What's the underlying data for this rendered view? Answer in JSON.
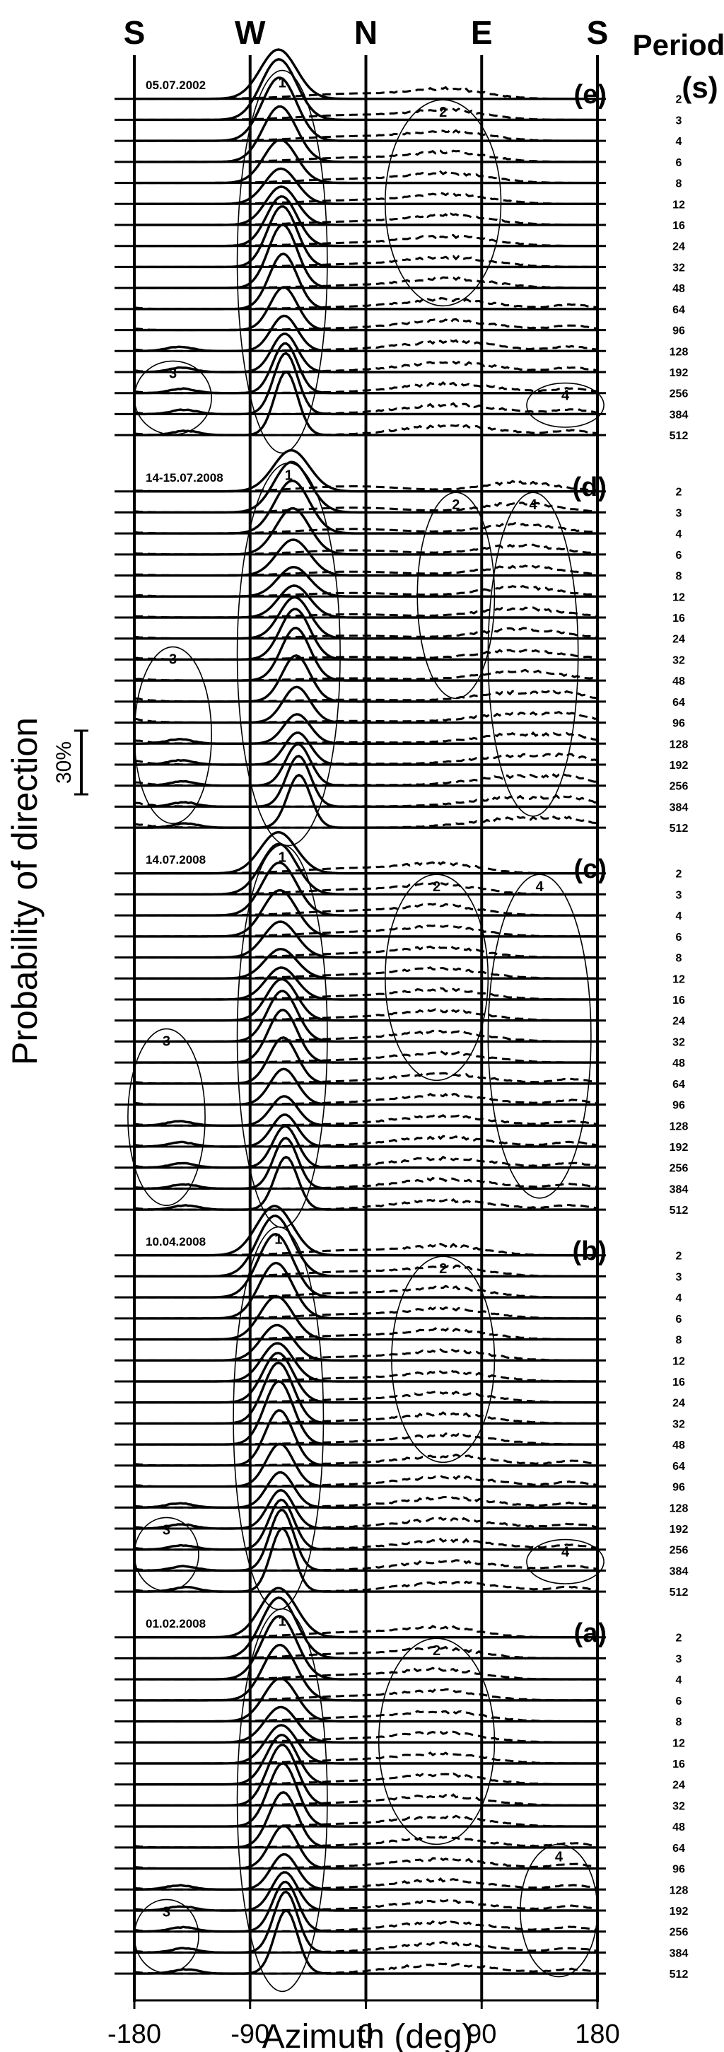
{
  "chart_data": {
    "type": "line",
    "description_axis": "Stacked direction-probability distributions per wave period for five dates",
    "xlabel": "Azimuth (deg)",
    "ylabel": "Probability of direction",
    "xlim": [
      -180,
      180
    ],
    "x_ticks": [
      "-180",
      "-90",
      "0",
      "90",
      "180"
    ],
    "x_tick_values": [
      -180,
      -90,
      0,
      90,
      180
    ],
    "direction_labels": [
      {
        "label": "S",
        "value": -180
      },
      {
        "label": "W",
        "value": -90
      },
      {
        "label": "N",
        "value": 0
      },
      {
        "label": "E",
        "value": 90
      },
      {
        "label": "S",
        "value": 180
      }
    ],
    "period_title": "Period",
    "period_unit": "(s)",
    "periods": [
      "2",
      "3",
      "4",
      "6",
      "8",
      "12",
      "16",
      "24",
      "32",
      "48",
      "64",
      "96",
      "128",
      "192",
      "256",
      "384",
      "512"
    ],
    "scale_bar_label": "30%",
    "scale_bar_value": 30,
    "grid": false,
    "panels": [
      {
        "letter": "(e)",
        "date": "05.07.2002",
        "solid_peak_azimuth": -65,
        "solid_peak_probability_percent": 30,
        "dashed_east_center": 65,
        "clusters": [
          {
            "num": "1",
            "center_azimuth": -65,
            "width_deg": 35
          },
          {
            "num": "2",
            "center_azimuth": 60,
            "width_deg": 45
          },
          {
            "num": "3",
            "center_azimuth": -150,
            "width_deg": 30
          },
          {
            "num": "4",
            "center_azimuth": 155,
            "width_deg": 30
          }
        ]
      },
      {
        "letter": "(d)",
        "date": "14-15.07.2008",
        "solid_peak_azimuth": -55,
        "solid_peak_probability_percent": 25,
        "dashed_east_center": 120,
        "clusters": [
          {
            "num": "1",
            "center_azimuth": -60,
            "width_deg": 40
          },
          {
            "num": "2",
            "center_azimuth": 70,
            "width_deg": 30
          },
          {
            "num": "3",
            "center_azimuth": -150,
            "width_deg": 30
          },
          {
            "num": "4",
            "center_azimuth": 130,
            "width_deg": 35
          }
        ]
      },
      {
        "letter": "(c)",
        "date": "14.07.2008",
        "solid_peak_azimuth": -65,
        "solid_peak_probability_percent": 25,
        "dashed_east_center": 60,
        "clusters": [
          {
            "num": "1",
            "center_azimuth": -65,
            "width_deg": 35
          },
          {
            "num": "2",
            "center_azimuth": 55,
            "width_deg": 40
          },
          {
            "num": "3",
            "center_azimuth": -155,
            "width_deg": 30
          },
          {
            "num": "4",
            "center_azimuth": 135,
            "width_deg": 40
          }
        ]
      },
      {
        "letter": "(b)",
        "date": "10.04.2008",
        "solid_peak_azimuth": -68,
        "solid_peak_probability_percent": 30,
        "dashed_east_center": 65,
        "clusters": [
          {
            "num": "1",
            "center_azimuth": -68,
            "width_deg": 35
          },
          {
            "num": "2",
            "center_azimuth": 60,
            "width_deg": 40
          },
          {
            "num": "3",
            "center_azimuth": -155,
            "width_deg": 25
          },
          {
            "num": "4",
            "center_azimuth": 155,
            "width_deg": 30
          }
        ]
      },
      {
        "letter": "(a)",
        "date": "01.02.2008",
        "solid_peak_azimuth": -65,
        "solid_peak_probability_percent": 30,
        "dashed_east_center": 60,
        "clusters": [
          {
            "num": "1",
            "center_azimuth": -65,
            "width_deg": 35
          },
          {
            "num": "2",
            "center_azimuth": 55,
            "width_deg": 45
          },
          {
            "num": "3",
            "center_azimuth": -155,
            "width_deg": 25
          },
          {
            "num": "4",
            "center_azimuth": 150,
            "width_deg": 30
          }
        ]
      }
    ]
  }
}
